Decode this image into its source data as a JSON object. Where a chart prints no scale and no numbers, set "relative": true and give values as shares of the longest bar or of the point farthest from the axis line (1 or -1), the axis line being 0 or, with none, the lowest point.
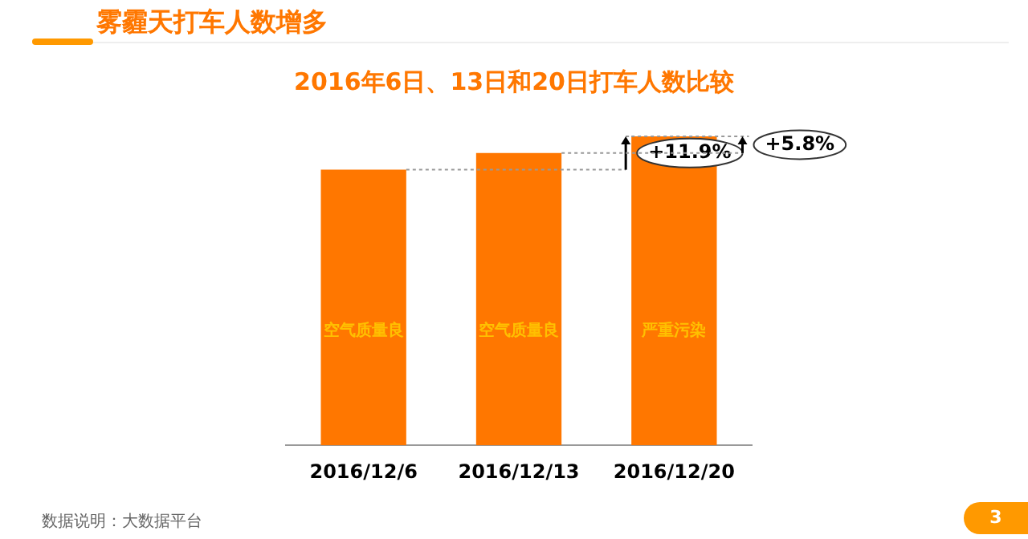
{
  "chart_data": {
    "type": "bar",
    "title": "雾霾天打车人数增多",
    "subtitle": "2016年6日、13日和20日打车人数比较",
    "categories": [
      "2016/12/6",
      "2016/12/13",
      "2016/12/20"
    ],
    "values": [
      0.892,
      0.946,
      1
    ],
    "color": "#ff7700",
    "relative": true,
    "grid": false,
    "legend": false,
    "annotations": [
      "空气质量良",
      "空气质量良",
      "严重污染",
      "+11.9%",
      "+5.8%",
      "数据说明：大数据平台",
      "3"
    ]
  }
}
